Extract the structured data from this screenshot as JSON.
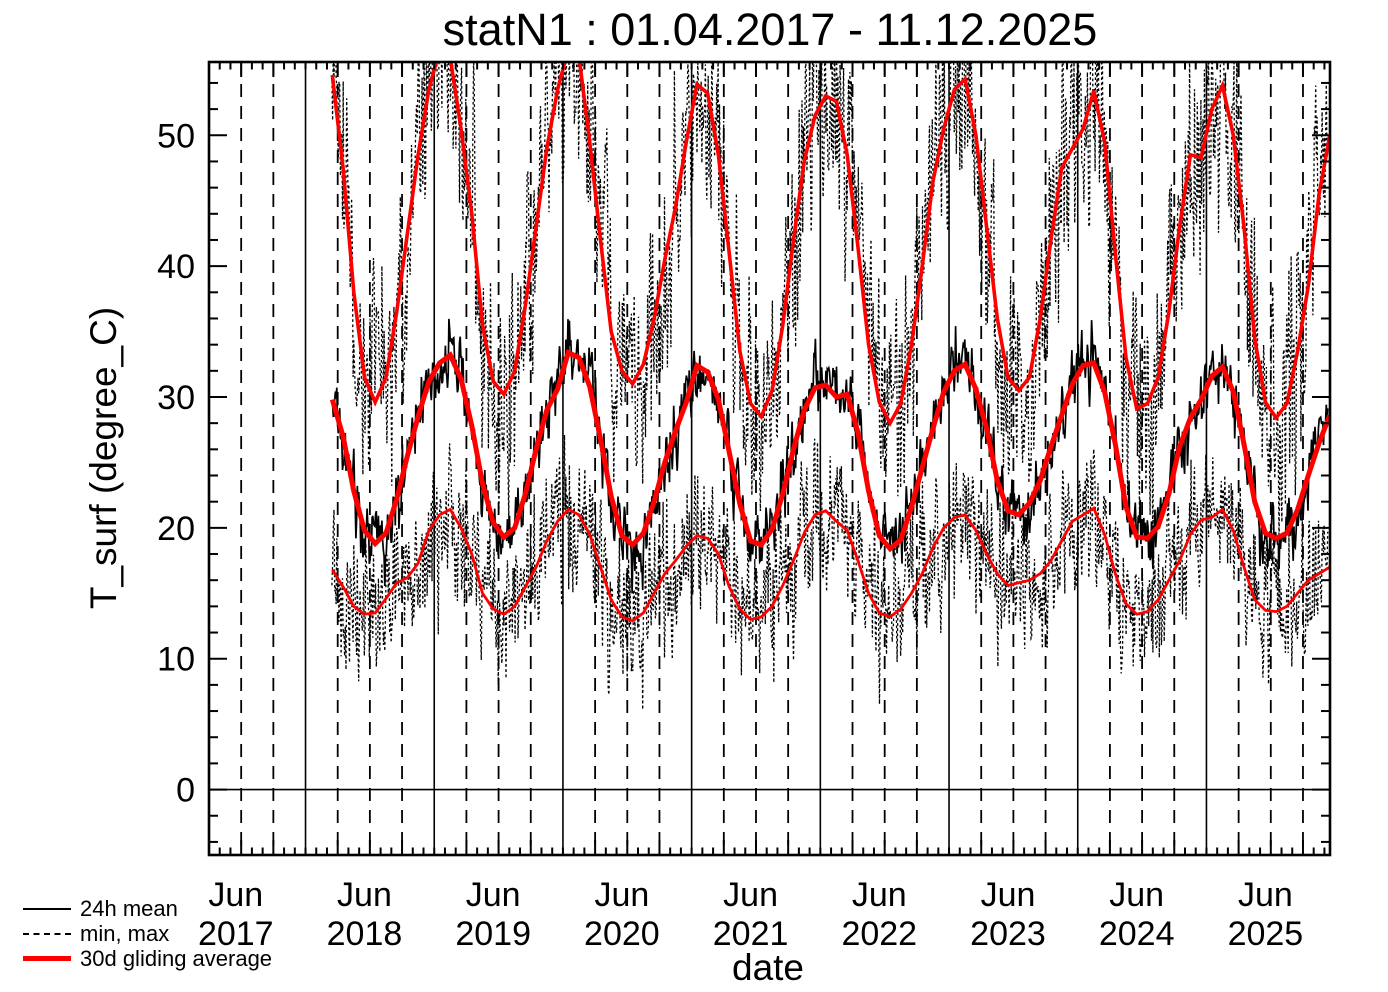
{
  "chart_data": {
    "type": "line",
    "title": "statN1 : 01.04.2017 - 11.12.2025",
    "xlabel": "date",
    "ylabel": "T_surf (degree_C)",
    "xlim_decimal_years": [
      2017.25,
      2025.96
    ],
    "ylim": [
      -5,
      55.6
    ],
    "grid": {
      "vertical_solid_year_lines": [
        2018,
        2019,
        2020,
        2021,
        2022,
        2023,
        2024,
        2025
      ],
      "vertical_dashed_quarter_months": [
        4,
        7,
        10
      ],
      "dashed_year_range": [
        2017,
        2025
      ],
      "zero_line": true
    },
    "x_ticks": [
      {
        "month_label": "Jun",
        "year_label": "2017",
        "t": 2017.458
      },
      {
        "month_label": "Jun",
        "year_label": "2018",
        "t": 2018.458
      },
      {
        "month_label": "Jun",
        "year_label": "2019",
        "t": 2019.458
      },
      {
        "month_label": "Jun",
        "year_label": "2020",
        "t": 2020.458
      },
      {
        "month_label": "Jun",
        "year_label": "2021",
        "t": 2021.458
      },
      {
        "month_label": "Jun",
        "year_label": "2022",
        "t": 2022.458
      },
      {
        "month_label": "Jun",
        "year_label": "2023",
        "t": 2023.458
      },
      {
        "month_label": "Jun",
        "year_label": "2024",
        "t": 2024.458
      },
      {
        "month_label": "Jun",
        "year_label": "2025",
        "t": 2025.458
      }
    ],
    "y_ticks": [
      {
        "value": 0,
        "label": "0"
      },
      {
        "value": 10,
        "label": "10"
      },
      {
        "value": 20,
        "label": "20"
      },
      {
        "value": 30,
        "label": "30"
      },
      {
        "value": 40,
        "label": "40"
      },
      {
        "value": 50,
        "label": "50"
      }
    ],
    "y_minor_step": 2,
    "legend": [
      {
        "label": "24h mean",
        "color": "#000000",
        "style": "solid",
        "width": 2
      },
      {
        "label": "min, max",
        "color": "#000000",
        "style": "dashed",
        "width": 2
      },
      {
        "label": "30d gliding average",
        "color": "#ff0000",
        "style": "solid",
        "width": 5
      }
    ],
    "series_monthly_start": {
      "year": 2018,
      "month": 3
    },
    "series_end_date": "11.12.2025",
    "series": [
      {
        "name": "30d gliding average of daily max",
        "color": "#ff0000",
        "width": 3.6,
        "style": "solid",
        "values": [
          54.6,
          47.5,
          38.0,
          31.5,
          29.6,
          31.5,
          36.5,
          42.5,
          48.5,
          53.5,
          56.5,
          55.9,
          50.5,
          44.0,
          35.5,
          31.2,
          30.2,
          32.0,
          37.0,
          43.0,
          49.0,
          53.5,
          56.6,
          56.0,
          49.5,
          42.0,
          35.0,
          32.0,
          31.0,
          32.5,
          36.0,
          40.5,
          44.5,
          49.5,
          53.9,
          53.2,
          48.5,
          41.0,
          33.5,
          29.5,
          28.5,
          30.5,
          35.5,
          42.0,
          48.0,
          51.5,
          53.0,
          52.6,
          48.5,
          41.5,
          34.0,
          29.6,
          28.0,
          29.5,
          34.0,
          40.0,
          46.5,
          50.5,
          53.5,
          54.3,
          50.0,
          43.0,
          36.0,
          31.5,
          30.5,
          31.5,
          36.0,
          42.0,
          47.5,
          49.0,
          50.5,
          53.4,
          49.5,
          41.0,
          33.0,
          29.1,
          29.5,
          31.5,
          36.5,
          43.0,
          48.5,
          48.3,
          52.0,
          53.8,
          50.0,
          43.0,
          34.5,
          29.6,
          28.4,
          29.5,
          33.5,
          38.5,
          45.5,
          50.0
        ]
      },
      {
        "name": "30d gliding average of 24h mean",
        "color": "#ff0000",
        "width": 5,
        "style": "solid",
        "values": [
          29.8,
          27.0,
          22.8,
          19.8,
          18.8,
          19.6,
          22.2,
          25.5,
          28.5,
          31.2,
          32.6,
          33.2,
          31.4,
          27.8,
          23.4,
          20.4,
          19.3,
          20.0,
          22.6,
          26.0,
          29.0,
          30.6,
          33.4,
          33.0,
          30.8,
          26.8,
          22.4,
          19.4,
          18.7,
          19.6,
          22.0,
          25.0,
          27.4,
          29.6,
          32.4,
          31.9,
          29.8,
          25.8,
          21.8,
          19.0,
          18.7,
          19.9,
          22.6,
          26.0,
          29.0,
          30.7,
          30.9,
          30.0,
          30.2,
          27.3,
          22.8,
          19.4,
          18.4,
          19.1,
          21.6,
          24.6,
          27.6,
          30.4,
          32.0,
          32.5,
          30.6,
          27.6,
          23.6,
          21.3,
          21.0,
          21.9,
          23.6,
          26.2,
          28.6,
          31.0,
          32.4,
          32.6,
          30.4,
          26.4,
          21.6,
          19.3,
          19.2,
          20.1,
          22.6,
          26.2,
          28.4,
          29.8,
          31.6,
          32.3,
          30.4,
          26.4,
          22.0,
          19.6,
          19.2,
          19.6,
          21.4,
          24.0,
          26.5,
          28.6
        ]
      },
      {
        "name": "30d gliding average of daily min",
        "color": "#ff0000",
        "width": 2.8,
        "style": "solid",
        "values": [
          16.8,
          15.5,
          14.0,
          13.4,
          13.5,
          14.6,
          15.8,
          16.2,
          17.3,
          19.8,
          21.0,
          21.4,
          20.0,
          18.0,
          15.0,
          13.8,
          13.4,
          14.0,
          15.5,
          17.0,
          19.0,
          20.5,
          21.4,
          21.0,
          19.5,
          17.0,
          14.5,
          13.2,
          12.9,
          13.5,
          15.0,
          16.5,
          17.5,
          18.6,
          19.4,
          19.2,
          18.0,
          15.5,
          13.8,
          13.0,
          13.2,
          14.0,
          15.6,
          17.5,
          19.6,
          21.0,
          21.3,
          20.5,
          19.8,
          17.5,
          15.0,
          13.5,
          13.2,
          13.8,
          15.0,
          16.5,
          18.5,
          20.0,
          20.8,
          21.0,
          19.8,
          18.0,
          16.5,
          15.6,
          15.8,
          16.0,
          16.5,
          17.5,
          19.0,
          20.5,
          21.0,
          21.5,
          19.5,
          16.5,
          14.2,
          13.4,
          13.6,
          14.5,
          16.0,
          17.5,
          19.5,
          20.6,
          20.8,
          21.4,
          19.8,
          17.0,
          14.5,
          13.7,
          13.6,
          14.0,
          15.0,
          16.0,
          16.5,
          17.0
        ]
      }
    ],
    "daily_series": {
      "mean": {
        "base_index": 1,
        "color": "#000000",
        "width": 1.7,
        "style": "solid",
        "noise_sd": 1.2
      },
      "max": {
        "base_index": 0,
        "color": "#000000",
        "width": 1.3,
        "style": "dashed",
        "noise_sd": 4.5
      },
      "min": {
        "base_index": 2,
        "color": "#000000",
        "width": 1.3,
        "style": "dashed",
        "noise_sd": 2.8
      },
      "sample_step_days": 2,
      "t_start": 2018.205,
      "t_end": 2025.944
    }
  }
}
